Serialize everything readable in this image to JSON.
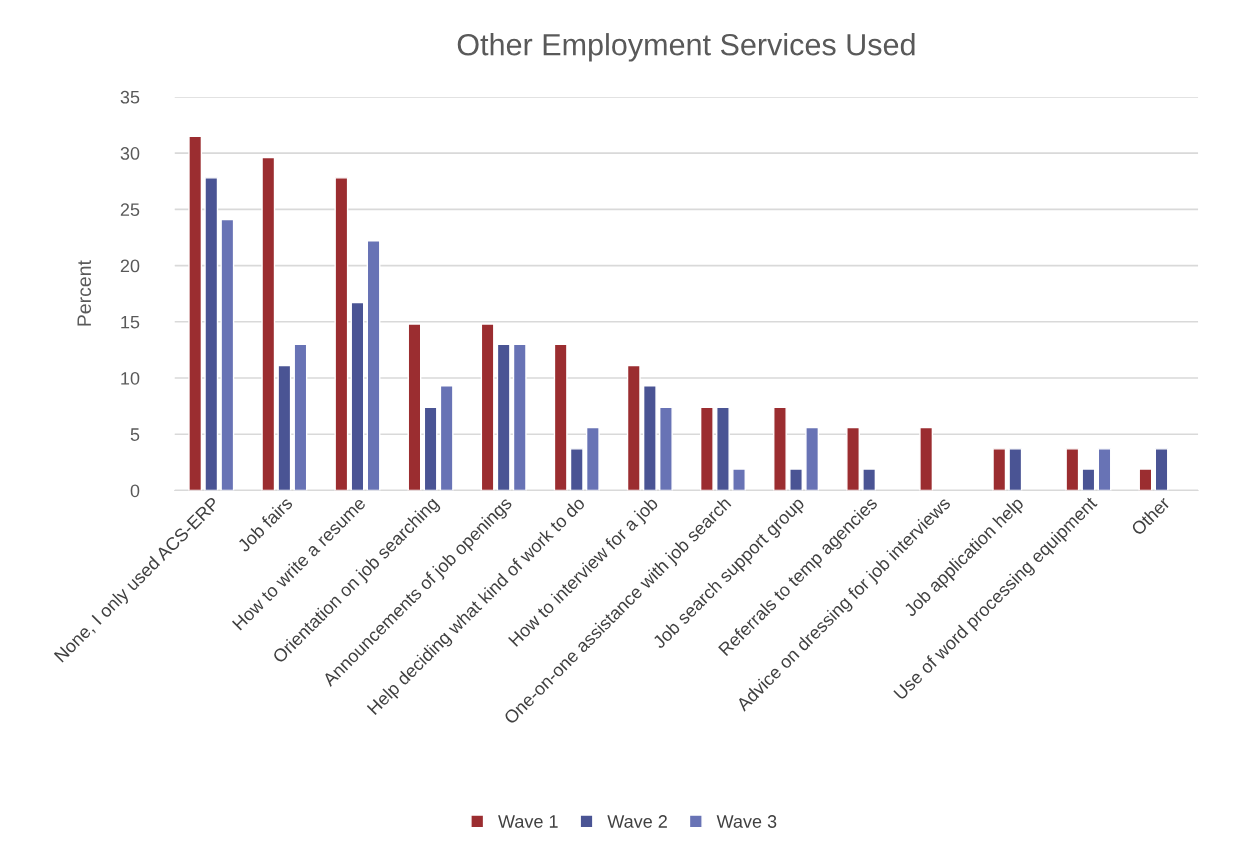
{
  "chart_data": {
    "type": "bar",
    "title": "Other Employment Services Used",
    "ylabel": "Percent",
    "categories": [
      "None, I only used ACS-ERP",
      "Job fairs",
      "How to write a resume",
      "Orientation on job searching",
      "Announcements of job openings",
      "Help deciding what kind of work to do",
      "How to interview for a job",
      "One-on-one assistance with job search",
      "Job search support group",
      "Referrals to temp agencies",
      "Advice on dressing for job interviews",
      "Job application help",
      "Use of word processing equipment",
      "Other"
    ],
    "series": [
      {
        "name": "Wave 1",
        "color": "#9b2d30",
        "values": [
          31.5,
          29.6,
          27.8,
          14.8,
          14.8,
          13.0,
          11.1,
          7.4,
          7.4,
          5.6,
          5.6,
          3.7,
          3.7,
          1.9
        ]
      },
      {
        "name": "Wave 2",
        "color": "#4a5494",
        "values": [
          27.8,
          11.1,
          16.7,
          7.4,
          13.0,
          3.7,
          9.3,
          7.4,
          1.9,
          1.9,
          null,
          3.7,
          1.9,
          3.7
        ]
      },
      {
        "name": "Wave 3",
        "color": "#6873b5",
        "values": [
          24.1,
          13.0,
          22.2,
          9.3,
          13.0,
          5.6,
          7.4,
          1.9,
          5.6,
          null,
          null,
          null,
          3.7,
          null
        ]
      }
    ],
    "ylim": [
      0,
      35
    ],
    "yticks": [
      0,
      5,
      10,
      15,
      20,
      25,
      30,
      35
    ],
    "grid": "y",
    "legend": "bottom"
  }
}
